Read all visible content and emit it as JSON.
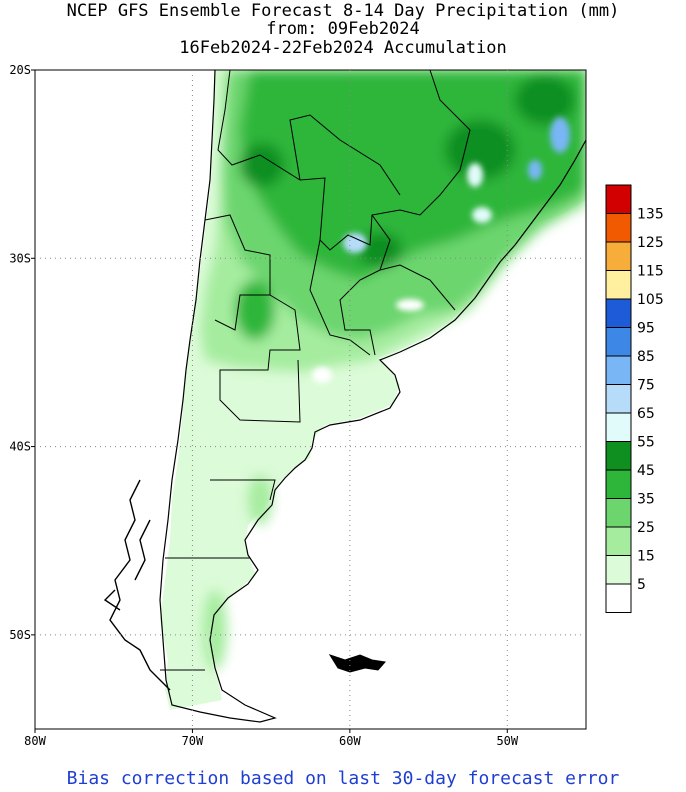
{
  "title_lines": [
    "NCEP GFS Ensemble Forecast 8-14 Day Precipitation (mm)",
    "from: 09Feb2024",
    "16Feb2024-22Feb2024 Accumulation"
  ],
  "footer": "Bias correction based on last 30-day forecast error",
  "map": {
    "lon_range": [
      -80,
      -45
    ],
    "lat_range": [
      -55,
      -20
    ],
    "lat_ticks": [
      {
        "value": -20,
        "label": "20S"
      },
      {
        "value": -30,
        "label": "30S"
      },
      {
        "value": -40,
        "label": "40S"
      },
      {
        "value": -50,
        "label": "50S"
      }
    ],
    "lon_ticks": [
      {
        "value": -80,
        "label": "80W"
      },
      {
        "value": -70,
        "label": "70W"
      },
      {
        "value": -60,
        "label": "60W"
      },
      {
        "value": -50,
        "label": "50W"
      }
    ],
    "grid": "dotted"
  },
  "legend": {
    "labels": [
      "135",
      "125",
      "115",
      "105",
      "95",
      "85",
      "75",
      "65",
      "55",
      "45",
      "35",
      "25",
      "15",
      "5"
    ],
    "colors": [
      "#d20000",
      "#f15a00",
      "#f7ad3a",
      "#fff0a0",
      "#1e5bd8",
      "#3d87e6",
      "#78b6f5",
      "#b6dcfa",
      "#e1fbfa",
      "#0f8f20",
      "#2eb63a",
      "#6cd56e",
      "#a5ec9f",
      "#dcfbd8",
      "#ffffff"
    ]
  },
  "colors": {
    "land_line": "#000000",
    "footer_text": "#1f3fd0"
  }
}
